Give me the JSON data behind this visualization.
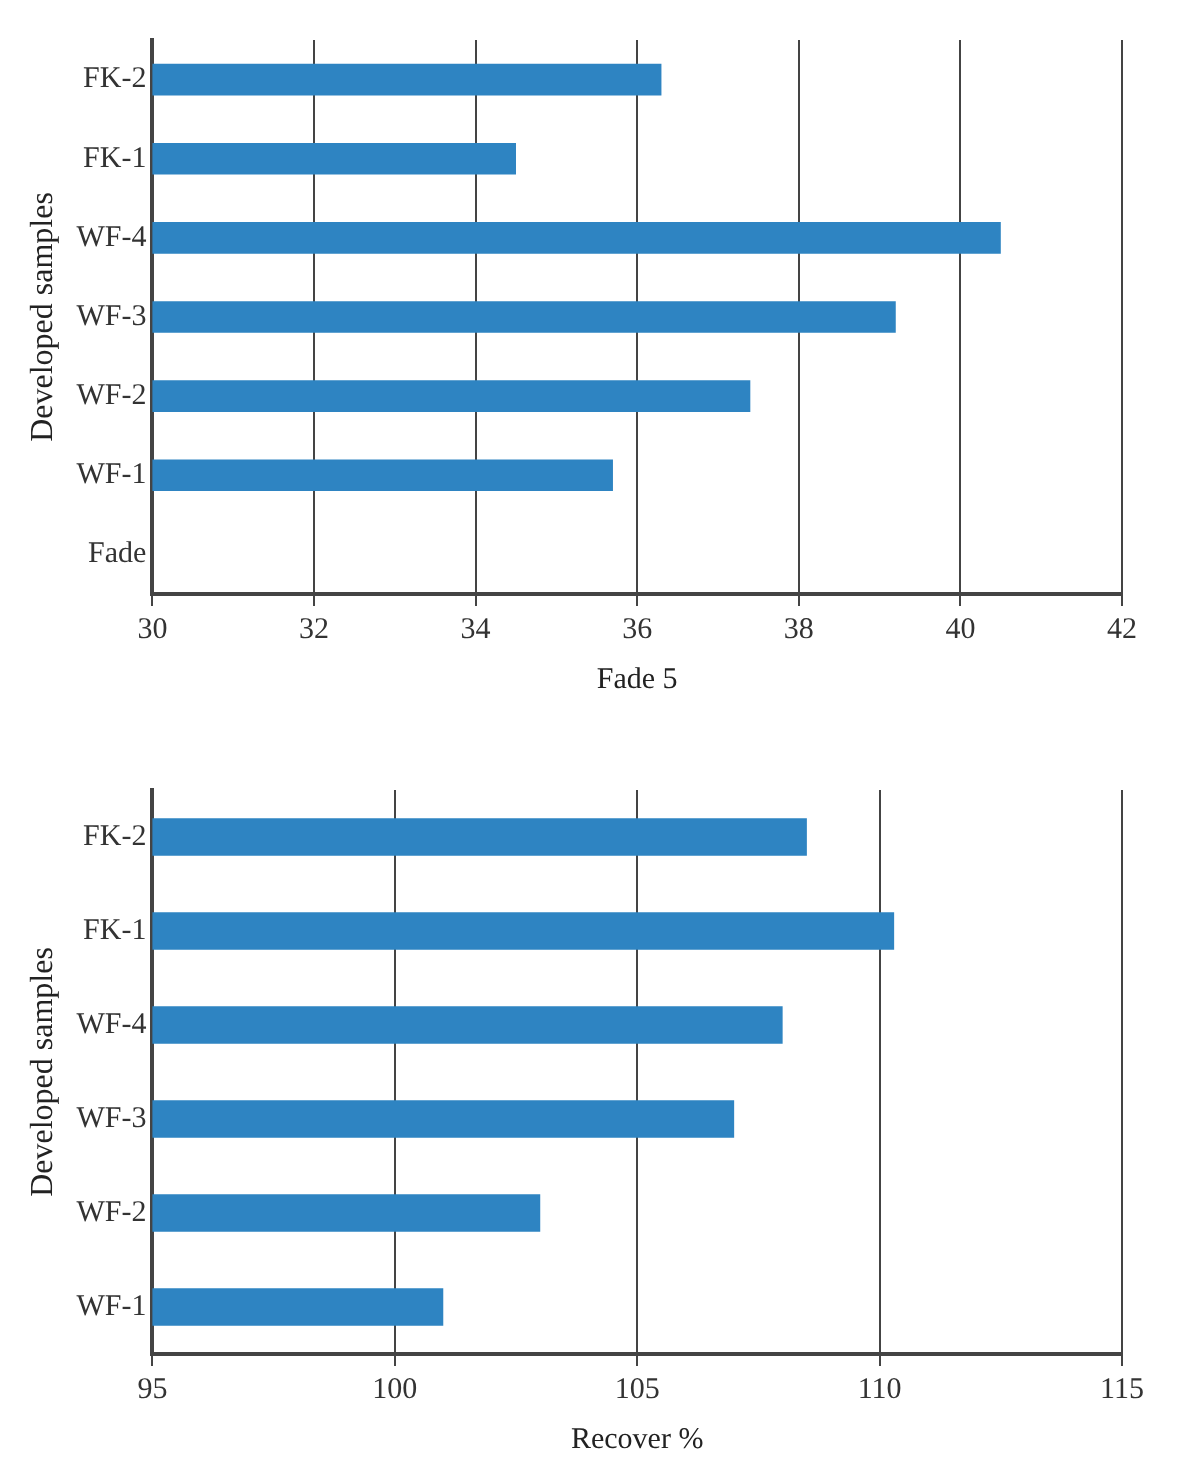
{
  "chart_data": [
    {
      "type": "bar",
      "orientation": "horizontal",
      "categories": [
        "FK-2",
        "FK-1",
        "WF-4",
        "WF-3",
        "WF-2",
        "WF-1",
        "Fade"
      ],
      "values": [
        36.3,
        34.5,
        40.5,
        39.2,
        37.4,
        35.7,
        null
      ],
      "color": "#2e84c2",
      "xlim": [
        30,
        42
      ],
      "xticks": [
        30,
        32,
        34,
        36,
        38,
        40,
        42
      ],
      "xlabel": "Fade 5",
      "ylabel": "Developed samples",
      "grid": "x",
      "legend": false
    },
    {
      "type": "bar",
      "orientation": "horizontal",
      "categories": [
        "FK-2",
        "FK-1",
        "WF-4",
        "WF-3",
        "WF-2",
        "WF-1"
      ],
      "values": [
        108.5,
        110.3,
        108.0,
        107.0,
        103.0,
        101.0
      ],
      "color": "#2e84c2",
      "xlim": [
        95,
        115
      ],
      "xticks": [
        95,
        100,
        105,
        110,
        115
      ],
      "xlabel": "Recover %",
      "ylabel": "Developed samples",
      "grid": "x",
      "legend": false
    }
  ]
}
